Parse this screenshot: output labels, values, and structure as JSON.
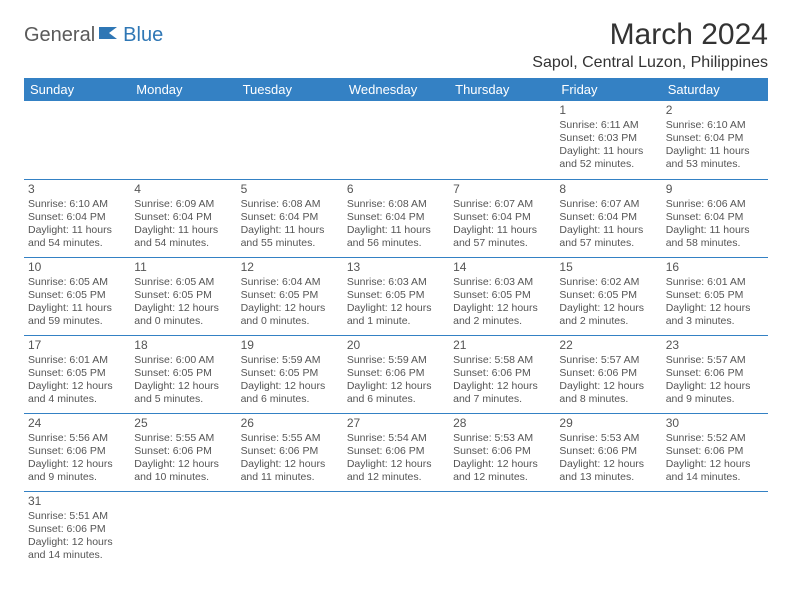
{
  "logo": {
    "part1": "General",
    "part2": "Blue"
  },
  "title": "March 2024",
  "location": "Sapol, Central Luzon, Philippines",
  "colors": {
    "headerBg": "#3481c4",
    "headerText": "#ffffff",
    "border": "#3481c4",
    "logoGray": "#5a5a5a",
    "logoBlue": "#2f77b5",
    "bodyText": "#555555"
  },
  "weekdays": [
    "Sunday",
    "Monday",
    "Tuesday",
    "Wednesday",
    "Thursday",
    "Friday",
    "Saturday"
  ],
  "cells": [
    [
      {
        "blank": true
      },
      {
        "blank": true
      },
      {
        "blank": true
      },
      {
        "blank": true
      },
      {
        "blank": true
      },
      {
        "day": "1",
        "sunrise": "Sunrise: 6:11 AM",
        "sunset": "Sunset: 6:03 PM",
        "daylight": "Daylight: 11 hours and 52 minutes."
      },
      {
        "day": "2",
        "sunrise": "Sunrise: 6:10 AM",
        "sunset": "Sunset: 6:04 PM",
        "daylight": "Daylight: 11 hours and 53 minutes."
      }
    ],
    [
      {
        "day": "3",
        "sunrise": "Sunrise: 6:10 AM",
        "sunset": "Sunset: 6:04 PM",
        "daylight": "Daylight: 11 hours and 54 minutes."
      },
      {
        "day": "4",
        "sunrise": "Sunrise: 6:09 AM",
        "sunset": "Sunset: 6:04 PM",
        "daylight": "Daylight: 11 hours and 54 minutes."
      },
      {
        "day": "5",
        "sunrise": "Sunrise: 6:08 AM",
        "sunset": "Sunset: 6:04 PM",
        "daylight": "Daylight: 11 hours and 55 minutes."
      },
      {
        "day": "6",
        "sunrise": "Sunrise: 6:08 AM",
        "sunset": "Sunset: 6:04 PM",
        "daylight": "Daylight: 11 hours and 56 minutes."
      },
      {
        "day": "7",
        "sunrise": "Sunrise: 6:07 AM",
        "sunset": "Sunset: 6:04 PM",
        "daylight": "Daylight: 11 hours and 57 minutes."
      },
      {
        "day": "8",
        "sunrise": "Sunrise: 6:07 AM",
        "sunset": "Sunset: 6:04 PM",
        "daylight": "Daylight: 11 hours and 57 minutes."
      },
      {
        "day": "9",
        "sunrise": "Sunrise: 6:06 AM",
        "sunset": "Sunset: 6:04 PM",
        "daylight": "Daylight: 11 hours and 58 minutes."
      }
    ],
    [
      {
        "day": "10",
        "sunrise": "Sunrise: 6:05 AM",
        "sunset": "Sunset: 6:05 PM",
        "daylight": "Daylight: 11 hours and 59 minutes."
      },
      {
        "day": "11",
        "sunrise": "Sunrise: 6:05 AM",
        "sunset": "Sunset: 6:05 PM",
        "daylight": "Daylight: 12 hours and 0 minutes."
      },
      {
        "day": "12",
        "sunrise": "Sunrise: 6:04 AM",
        "sunset": "Sunset: 6:05 PM",
        "daylight": "Daylight: 12 hours and 0 minutes."
      },
      {
        "day": "13",
        "sunrise": "Sunrise: 6:03 AM",
        "sunset": "Sunset: 6:05 PM",
        "daylight": "Daylight: 12 hours and 1 minute."
      },
      {
        "day": "14",
        "sunrise": "Sunrise: 6:03 AM",
        "sunset": "Sunset: 6:05 PM",
        "daylight": "Daylight: 12 hours and 2 minutes."
      },
      {
        "day": "15",
        "sunrise": "Sunrise: 6:02 AM",
        "sunset": "Sunset: 6:05 PM",
        "daylight": "Daylight: 12 hours and 2 minutes."
      },
      {
        "day": "16",
        "sunrise": "Sunrise: 6:01 AM",
        "sunset": "Sunset: 6:05 PM",
        "daylight": "Daylight: 12 hours and 3 minutes."
      }
    ],
    [
      {
        "day": "17",
        "sunrise": "Sunrise: 6:01 AM",
        "sunset": "Sunset: 6:05 PM",
        "daylight": "Daylight: 12 hours and 4 minutes."
      },
      {
        "day": "18",
        "sunrise": "Sunrise: 6:00 AM",
        "sunset": "Sunset: 6:05 PM",
        "daylight": "Daylight: 12 hours and 5 minutes."
      },
      {
        "day": "19",
        "sunrise": "Sunrise: 5:59 AM",
        "sunset": "Sunset: 6:05 PM",
        "daylight": "Daylight: 12 hours and 6 minutes."
      },
      {
        "day": "20",
        "sunrise": "Sunrise: 5:59 AM",
        "sunset": "Sunset: 6:06 PM",
        "daylight": "Daylight: 12 hours and 6 minutes."
      },
      {
        "day": "21",
        "sunrise": "Sunrise: 5:58 AM",
        "sunset": "Sunset: 6:06 PM",
        "daylight": "Daylight: 12 hours and 7 minutes."
      },
      {
        "day": "22",
        "sunrise": "Sunrise: 5:57 AM",
        "sunset": "Sunset: 6:06 PM",
        "daylight": "Daylight: 12 hours and 8 minutes."
      },
      {
        "day": "23",
        "sunrise": "Sunrise: 5:57 AM",
        "sunset": "Sunset: 6:06 PM",
        "daylight": "Daylight: 12 hours and 9 minutes."
      }
    ],
    [
      {
        "day": "24",
        "sunrise": "Sunrise: 5:56 AM",
        "sunset": "Sunset: 6:06 PM",
        "daylight": "Daylight: 12 hours and 9 minutes."
      },
      {
        "day": "25",
        "sunrise": "Sunrise: 5:55 AM",
        "sunset": "Sunset: 6:06 PM",
        "daylight": "Daylight: 12 hours and 10 minutes."
      },
      {
        "day": "26",
        "sunrise": "Sunrise: 5:55 AM",
        "sunset": "Sunset: 6:06 PM",
        "daylight": "Daylight: 12 hours and 11 minutes."
      },
      {
        "day": "27",
        "sunrise": "Sunrise: 5:54 AM",
        "sunset": "Sunset: 6:06 PM",
        "daylight": "Daylight: 12 hours and 12 minutes."
      },
      {
        "day": "28",
        "sunrise": "Sunrise: 5:53 AM",
        "sunset": "Sunset: 6:06 PM",
        "daylight": "Daylight: 12 hours and 12 minutes."
      },
      {
        "day": "29",
        "sunrise": "Sunrise: 5:53 AM",
        "sunset": "Sunset: 6:06 PM",
        "daylight": "Daylight: 12 hours and 13 minutes."
      },
      {
        "day": "30",
        "sunrise": "Sunrise: 5:52 AM",
        "sunset": "Sunset: 6:06 PM",
        "daylight": "Daylight: 12 hours and 14 minutes."
      }
    ],
    [
      {
        "day": "31",
        "sunrise": "Sunrise: 5:51 AM",
        "sunset": "Sunset: 6:06 PM",
        "daylight": "Daylight: 12 hours and 14 minutes."
      },
      {
        "blank": true
      },
      {
        "blank": true
      },
      {
        "blank": true
      },
      {
        "blank": true
      },
      {
        "blank": true
      },
      {
        "blank": true
      }
    ]
  ]
}
